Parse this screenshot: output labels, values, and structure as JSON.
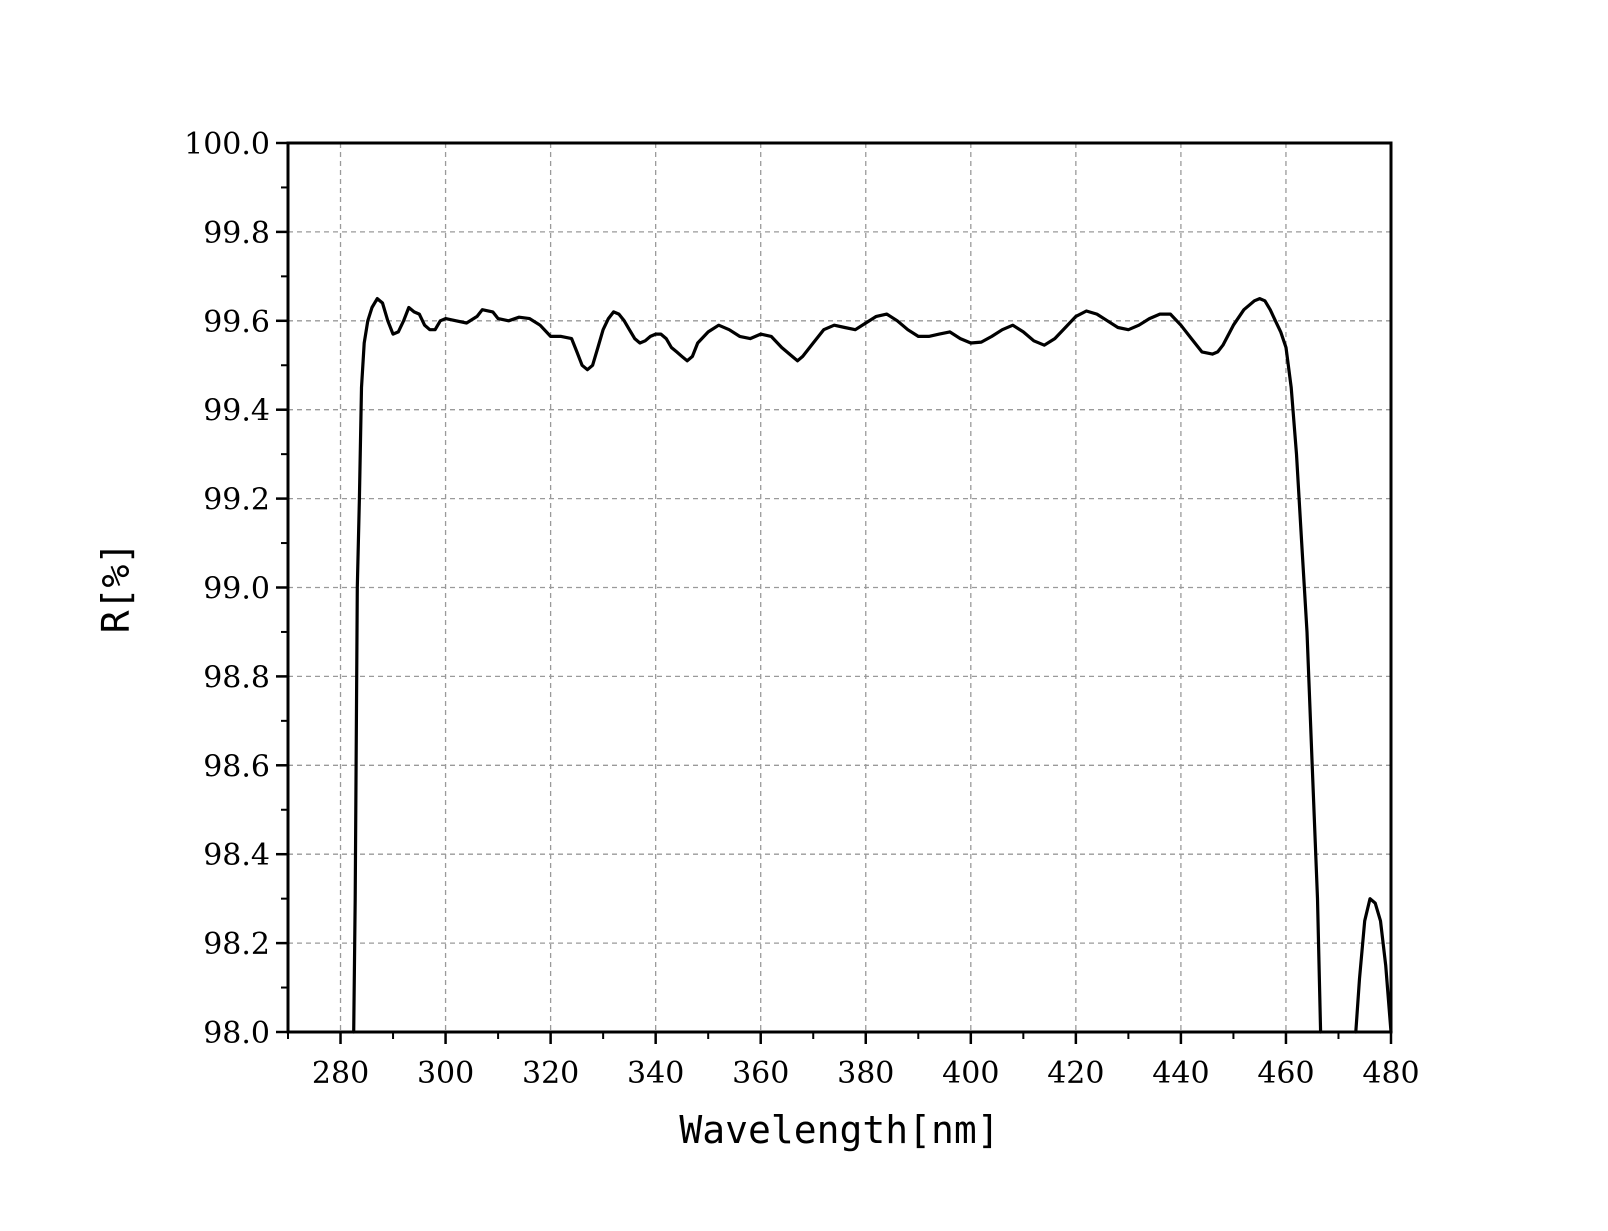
{
  "chart_data": {
    "type": "line",
    "title": "",
    "xlabel": "Wavelength[nm]",
    "ylabel": "R[%]",
    "xlim": [
      270,
      480
    ],
    "ylim": [
      98.0,
      100.0
    ],
    "grid": true,
    "grid_style": "dashed",
    "x_ticks": [
      "280",
      "300",
      "320",
      "340",
      "360",
      "380",
      "400",
      "420",
      "440",
      "460",
      "480"
    ],
    "y_ticks": [
      "98.0",
      "98.2",
      "98.4",
      "98.6",
      "98.8",
      "99.0",
      "99.2",
      "99.4",
      "99.6",
      "99.8",
      "100.0"
    ],
    "line_color": "#000000",
    "series": [
      {
        "segments": [
          [
            [
              282.5,
              98.0
            ],
            [
              282.8,
              98.3
            ],
            [
              283.2,
              99.0
            ],
            [
              283.6,
              99.2
            ],
            [
              284.0,
              99.45
            ],
            [
              284.5,
              99.55
            ],
            [
              285.2,
              99.6
            ],
            [
              286.0,
              99.63
            ],
            [
              287.0,
              99.65
            ],
            [
              288.0,
              99.64
            ],
            [
              289.0,
              99.6
            ],
            [
              290.0,
              99.57
            ],
            [
              291.0,
              99.575
            ],
            [
              292.0,
              99.6
            ],
            [
              293.0,
              99.63
            ],
            [
              294.0,
              99.62
            ],
            [
              295.0,
              99.615
            ],
            [
              296.0,
              99.59
            ],
            [
              297.0,
              99.58
            ],
            [
              298.0,
              99.58
            ],
            [
              299.0,
              99.6
            ],
            [
              300.0,
              99.605
            ],
            [
              302.0,
              99.6
            ],
            [
              304.0,
              99.595
            ],
            [
              306.0,
              99.61
            ],
            [
              307.0,
              99.625
            ],
            [
              309.0,
              99.62
            ],
            [
              310.0,
              99.605
            ],
            [
              312.0,
              99.6
            ],
            [
              314.0,
              99.608
            ],
            [
              316.0,
              99.605
            ],
            [
              318.0,
              99.59
            ],
            [
              320.0,
              99.565
            ],
            [
              322.0,
              99.565
            ],
            [
              324.0,
              99.56
            ],
            [
              325.0,
              99.53
            ],
            [
              326.0,
              99.5
            ],
            [
              327.0,
              99.49
            ],
            [
              328.0,
              99.5
            ],
            [
              329.0,
              99.54
            ],
            [
              330.0,
              99.58
            ],
            [
              331.0,
              99.605
            ],
            [
              332.0,
              99.62
            ],
            [
              333.0,
              99.615
            ],
            [
              334.0,
              99.6
            ],
            [
              335.0,
              99.58
            ],
            [
              336.0,
              99.56
            ],
            [
              337.0,
              99.55
            ],
            [
              338.0,
              99.555
            ],
            [
              339.0,
              99.565
            ],
            [
              340.0,
              99.57
            ],
            [
              341.0,
              99.57
            ],
            [
              342.0,
              99.56
            ],
            [
              343.0,
              99.54
            ],
            [
              344.0,
              99.53
            ],
            [
              345.0,
              99.52
            ],
            [
              346.0,
              99.51
            ],
            [
              347.0,
              99.52
            ],
            [
              348.0,
              99.55
            ],
            [
              350.0,
              99.575
            ],
            [
              352.0,
              99.59
            ],
            [
              354.0,
              99.58
            ],
            [
              356.0,
              99.565
            ],
            [
              358.0,
              99.56
            ],
            [
              360.0,
              99.57
            ],
            [
              362.0,
              99.565
            ],
            [
              364.0,
              99.54
            ],
            [
              366.0,
              99.52
            ],
            [
              367.0,
              99.51
            ],
            [
              368.0,
              99.52
            ],
            [
              370.0,
              99.55
            ],
            [
              372.0,
              99.58
            ],
            [
              374.0,
              99.59
            ],
            [
              376.0,
              99.585
            ],
            [
              378.0,
              99.58
            ],
            [
              380.0,
              99.595
            ],
            [
              382.0,
              99.61
            ],
            [
              384.0,
              99.615
            ],
            [
              386.0,
              99.6
            ],
            [
              388.0,
              99.58
            ],
            [
              390.0,
              99.565
            ],
            [
              392.0,
              99.565
            ],
            [
              394.0,
              99.57
            ],
            [
              396.0,
              99.575
            ],
            [
              398.0,
              99.56
            ],
            [
              400.0,
              99.55
            ],
            [
              402.0,
              99.552
            ],
            [
              404.0,
              99.565
            ],
            [
              406.0,
              99.58
            ],
            [
              408.0,
              99.59
            ],
            [
              410.0,
              99.575
            ],
            [
              412.0,
              99.555
            ],
            [
              414.0,
              99.545
            ],
            [
              416.0,
              99.56
            ],
            [
              418.0,
              99.585
            ],
            [
              420.0,
              99.61
            ],
            [
              422.0,
              99.622
            ],
            [
              424.0,
              99.615
            ],
            [
              426.0,
              99.6
            ],
            [
              428.0,
              99.585
            ],
            [
              430.0,
              99.58
            ],
            [
              432.0,
              99.59
            ],
            [
              434.0,
              99.605
            ],
            [
              436.0,
              99.615
            ],
            [
              438.0,
              99.615
            ],
            [
              440.0,
              99.59
            ],
            [
              442.0,
              99.56
            ],
            [
              444.0,
              99.53
            ],
            [
              446.0,
              99.525
            ],
            [
              447.0,
              99.53
            ],
            [
              448.0,
              99.545
            ],
            [
              450.0,
              99.59
            ],
            [
              452.0,
              99.625
            ],
            [
              454.0,
              99.645
            ],
            [
              455.0,
              99.65
            ],
            [
              456.0,
              99.645
            ],
            [
              457.0,
              99.625
            ],
            [
              458.0,
              99.6
            ],
            [
              459.0,
              99.575
            ],
            [
              460.0,
              99.54
            ],
            [
              461.0,
              99.45
            ],
            [
              462.0,
              99.3
            ],
            [
              463.0,
              99.1
            ],
            [
              464.0,
              98.9
            ],
            [
              465.0,
              98.6
            ],
            [
              466.0,
              98.3
            ],
            [
              466.6,
              98.0
            ]
          ],
          [
            [
              473.3,
              98.0
            ],
            [
              474.0,
              98.12
            ],
            [
              475.0,
              98.25
            ],
            [
              476.0,
              98.3
            ],
            [
              477.0,
              98.29
            ],
            [
              478.0,
              98.25
            ],
            [
              479.0,
              98.15
            ],
            [
              480.0,
              98.0
            ]
          ]
        ]
      }
    ]
  }
}
